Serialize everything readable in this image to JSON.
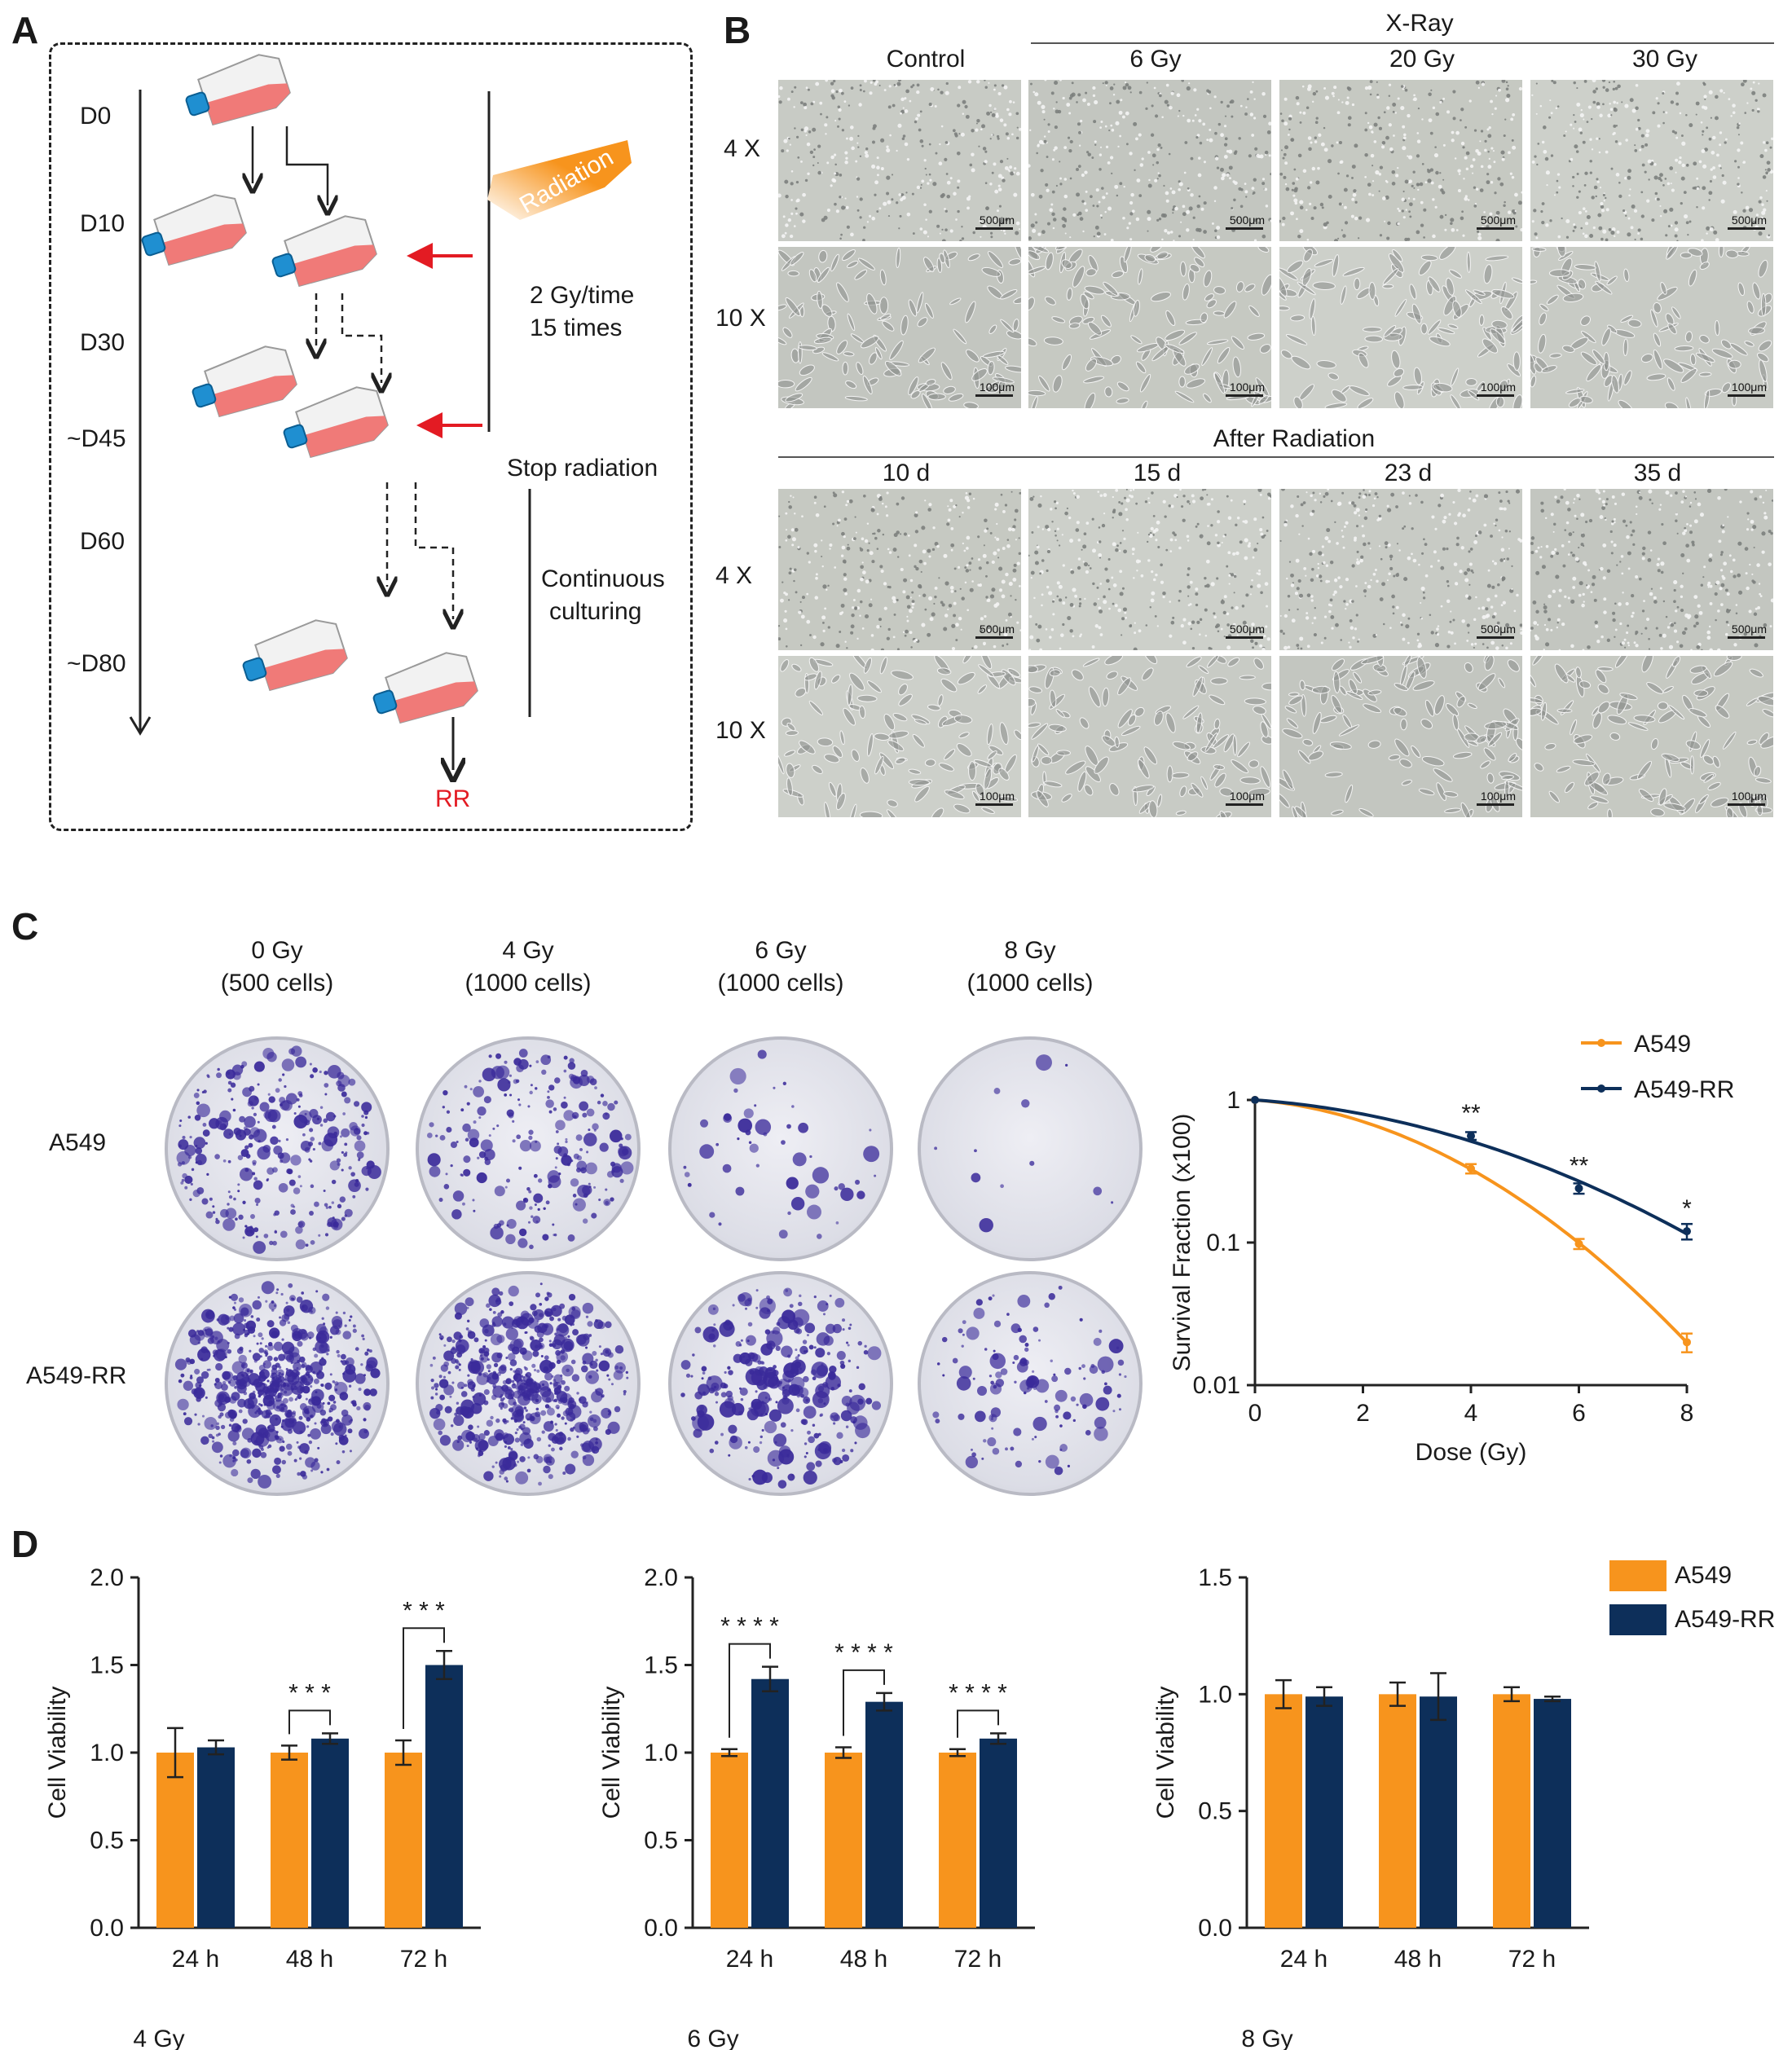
{
  "panels": {
    "a": "A",
    "b": "B",
    "c": "C",
    "d": "D"
  },
  "panel_a": {
    "days": [
      "D0",
      "D10",
      "D30",
      "~D45",
      "D60",
      "~D80"
    ],
    "radiation_label": "Radiation",
    "dose_schedule_line1": "2 Gy/time",
    "dose_schedule_line2": "15 times",
    "stop_label": "Stop radiation",
    "continuous_line1": "Continuous",
    "continuous_line2": "culturing",
    "result_label": "RR"
  },
  "panel_b": {
    "top_group": "X-Ray",
    "top_columns": [
      "Control",
      "6 Gy",
      "20 Gy",
      "30 Gy"
    ],
    "bottom_group": "After Radiation",
    "bottom_columns": [
      "10 d",
      "15 d",
      "23 d",
      "35 d"
    ],
    "rows": [
      "4 X",
      "10 X"
    ],
    "scale_4x": "500μm",
    "scale_10x": "100μm"
  },
  "panel_c": {
    "columns": [
      {
        "dose": "0 Gy",
        "cells": "(500 cells)"
      },
      {
        "dose": "4 Gy",
        "cells": "(1000 cells)"
      },
      {
        "dose": "6 Gy",
        "cells": "(1000 cells)"
      },
      {
        "dose": "8 Gy",
        "cells": "(1000 cells)"
      }
    ],
    "rows": [
      "A549",
      "A549-RR"
    ]
  },
  "colors": {
    "a549": "#f7941d",
    "a549rr": "#0d2f5a",
    "arrow_red": "#e31b23",
    "colony": "#3a2a9a"
  },
  "chart_data": [
    {
      "type": "line",
      "scale": "log-y",
      "xlabel": "Dose (Gy)",
      "ylabel": "Survival Fraction (x100)",
      "x": [
        0,
        4,
        6,
        8
      ],
      "xticks": [
        "0",
        "2",
        "4",
        "6",
        "8"
      ],
      "yticks": [
        "1",
        "0.1",
        "0.01"
      ],
      "xlim": [
        0,
        8
      ],
      "ylim": [
        0.01,
        1
      ],
      "legend_position": "top-right",
      "series": [
        {
          "name": "A549",
          "values": [
            1.0,
            0.33,
            0.098,
            0.02
          ],
          "errors": [
            0,
            0.025,
            0.008,
            0.003
          ]
        },
        {
          "name": "A549-RR",
          "values": [
            1.0,
            0.56,
            0.24,
            0.12
          ],
          "errors": [
            0,
            0.035,
            0.02,
            0.015
          ]
        }
      ],
      "annotations": [
        {
          "x": 4,
          "text": "**"
        },
        {
          "x": 6,
          "text": "**"
        },
        {
          "x": 8,
          "text": "*"
        }
      ]
    },
    {
      "type": "bar",
      "title": "4 Gy",
      "ylabel": "Cell Viability",
      "categories": [
        "24 h",
        "48 h",
        "72 h"
      ],
      "ylim": [
        0,
        2.0
      ],
      "yticks": [
        "0.0",
        "0.5",
        "1.0",
        "1.5",
        "2.0"
      ],
      "series": [
        {
          "name": "A549",
          "values": [
            1.0,
            1.0,
            1.0
          ],
          "errors": [
            0.14,
            0.04,
            0.07
          ]
        },
        {
          "name": "A549-RR",
          "values": [
            1.03,
            1.08,
            1.5
          ],
          "errors": [
            0.04,
            0.03,
            0.08
          ]
        }
      ],
      "significance": [
        "",
        "***",
        "***"
      ]
    },
    {
      "type": "bar",
      "title": "6 Gy",
      "ylabel": "Cell Viability",
      "categories": [
        "24 h",
        "48 h",
        "72 h"
      ],
      "ylim": [
        0,
        2.0
      ],
      "yticks": [
        "0.0",
        "0.5",
        "1.0",
        "1.5",
        "2.0"
      ],
      "series": [
        {
          "name": "A549",
          "values": [
            1.0,
            1.0,
            1.0
          ],
          "errors": [
            0.02,
            0.03,
            0.02
          ]
        },
        {
          "name": "A549-RR",
          "values": [
            1.42,
            1.29,
            1.08
          ],
          "errors": [
            0.07,
            0.05,
            0.03
          ]
        }
      ],
      "significance": [
        "****",
        "****",
        "****"
      ]
    },
    {
      "type": "bar",
      "title": "8 Gy",
      "ylabel": "Cell Viability",
      "categories": [
        "24 h",
        "48 h",
        "72 h"
      ],
      "ylim": [
        0,
        1.5
      ],
      "yticks": [
        "0.0",
        "0.5",
        "1.0",
        "1.5"
      ],
      "series": [
        {
          "name": "A549",
          "values": [
            1.0,
            1.0,
            1.0
          ],
          "errors": [
            0.06,
            0.05,
            0.03
          ]
        },
        {
          "name": "A549-RR",
          "values": [
            0.99,
            0.99,
            0.98
          ],
          "errors": [
            0.04,
            0.1,
            0.01
          ]
        }
      ],
      "significance": [
        "",
        "",
        ""
      ]
    }
  ],
  "bar_legend": [
    "A549",
    "A549-RR"
  ]
}
